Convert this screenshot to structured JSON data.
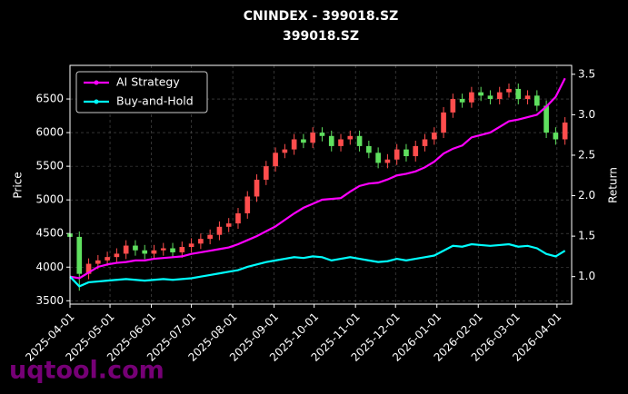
{
  "chart_data": {
    "type": "candlestick",
    "title": "CNINDEX - 399018.SZ",
    "subtitle": "399018.SZ",
    "ylabel": "Price",
    "y2label": "Return",
    "watermark": "uqtool.com",
    "up_color": "#ff4d4d",
    "down_color": "#5fe05f",
    "grid": true,
    "legend": "upper-left",
    "x": [
      "2025-04-01",
      "2025-04-08",
      "2025-04-15",
      "2025-04-22",
      "2025-04-29",
      "2025-05-06",
      "2025-05-13",
      "2025-05-20",
      "2025-05-27",
      "2025-06-03",
      "2025-06-10",
      "2025-06-17",
      "2025-06-24",
      "2025-07-01",
      "2025-07-08",
      "2025-07-15",
      "2025-07-22",
      "2025-07-29",
      "2025-08-05",
      "2025-08-12",
      "2025-08-19",
      "2025-08-26",
      "2025-09-02",
      "2025-09-09",
      "2025-09-16",
      "2025-09-23",
      "2025-09-30",
      "2025-10-07",
      "2025-10-14",
      "2025-10-21",
      "2025-10-28",
      "2025-11-04",
      "2025-11-11",
      "2025-11-18",
      "2025-11-25",
      "2025-12-02",
      "2025-12-09",
      "2025-12-16",
      "2025-12-23",
      "2025-12-30",
      "2026-01-06",
      "2026-01-13",
      "2026-01-20",
      "2026-01-27",
      "2026-02-03",
      "2026-02-10",
      "2026-02-17",
      "2026-02-24",
      "2026-03-03",
      "2026-03-10",
      "2026-03-17",
      "2026-03-24",
      "2026-03-31",
      "2026-04-07"
    ],
    "open": [
      4500,
      4450,
      3900,
      4050,
      4100,
      4150,
      4200,
      4320,
      4250,
      4200,
      4250,
      4280,
      4220,
      4300,
      4350,
      4420,
      4480,
      4600,
      4650,
      4800,
      5050,
      5300,
      5500,
      5700,
      5750,
      5900,
      5850,
      6000,
      5950,
      5800,
      5900,
      5950,
      5800,
      5700,
      5550,
      5600,
      5750,
      5650,
      5800,
      5900,
      6000,
      6300,
      6500,
      6450,
      6600,
      6550,
      6500,
      6600,
      6650,
      6500,
      6550,
      6400,
      6000,
      5900
    ],
    "high": [
      4580,
      4530,
      4130,
      4180,
      4230,
      4280,
      4400,
      4400,
      4330,
      4330,
      4360,
      4360,
      4380,
      4430,
      4500,
      4560,
      4680,
      4730,
      4880,
      5130,
      5380,
      5580,
      5780,
      5830,
      5980,
      5980,
      6080,
      6080,
      6030,
      5980,
      6030,
      6030,
      5880,
      5780,
      5680,
      5830,
      5830,
      5880,
      5980,
      6080,
      6380,
      6580,
      6580,
      6680,
      6680,
      6630,
      6680,
      6730,
      6730,
      6630,
      6630,
      6480,
      6080,
      6230
    ],
    "low": [
      4370,
      3650,
      3820,
      3970,
      4020,
      4070,
      4120,
      4170,
      4120,
      4120,
      4170,
      4140,
      4140,
      4220,
      4270,
      4340,
      4400,
      4520,
      4570,
      4720,
      4970,
      5220,
      5420,
      5620,
      5670,
      5770,
      5770,
      5870,
      5720,
      5720,
      5820,
      5720,
      5620,
      5470,
      5470,
      5520,
      5570,
      5570,
      5720,
      5820,
      5920,
      6220,
      6370,
      6370,
      6470,
      6420,
      6420,
      6520,
      6420,
      6420,
      6320,
      5920,
      5820,
      5820
    ],
    "close": [
      4450,
      3900,
      4050,
      4100,
      4150,
      4200,
      4320,
      4250,
      4200,
      4250,
      4280,
      4220,
      4300,
      4350,
      4420,
      4480,
      4600,
      4650,
      4800,
      5050,
      5300,
      5500,
      5700,
      5750,
      5900,
      5850,
      6000,
      5950,
      5800,
      5900,
      5950,
      5800,
      5700,
      5550,
      5600,
      5750,
      5650,
      5800,
      5900,
      6000,
      6300,
      6500,
      6450,
      6600,
      6550,
      6500,
      6600,
      6650,
      6500,
      6550,
      6400,
      6000,
      5900,
      6150
    ],
    "series": [
      {
        "name": "AI Strategy",
        "color": "#ff00ff",
        "type": "line",
        "axis": "y2",
        "values": [
          1.0,
          0.98,
          1.05,
          1.12,
          1.15,
          1.17,
          1.18,
          1.2,
          1.2,
          1.22,
          1.23,
          1.24,
          1.25,
          1.28,
          1.3,
          1.32,
          1.34,
          1.36,
          1.4,
          1.45,
          1.5,
          1.56,
          1.62,
          1.7,
          1.78,
          1.85,
          1.9,
          1.95,
          1.96,
          1.97,
          2.05,
          2.12,
          2.15,
          2.16,
          2.2,
          2.25,
          2.27,
          2.3,
          2.35,
          2.42,
          2.52,
          2.58,
          2.62,
          2.72,
          2.75,
          2.78,
          2.85,
          2.92,
          2.94,
          2.97,
          3.0,
          3.1,
          3.22,
          3.45
        ]
      },
      {
        "name": "Buy-and-Hold",
        "color": "#00ffff",
        "type": "line",
        "axis": "y2",
        "values": [
          1.0,
          0.88,
          0.93,
          0.94,
          0.95,
          0.96,
          0.97,
          0.96,
          0.95,
          0.96,
          0.97,
          0.96,
          0.97,
          0.98,
          1.0,
          1.02,
          1.04,
          1.06,
          1.08,
          1.12,
          1.15,
          1.18,
          1.2,
          1.22,
          1.24,
          1.23,
          1.25,
          1.24,
          1.2,
          1.22,
          1.24,
          1.22,
          1.2,
          1.18,
          1.19,
          1.22,
          1.2,
          1.22,
          1.24,
          1.26,
          1.32,
          1.38,
          1.37,
          1.4,
          1.39,
          1.38,
          1.39,
          1.4,
          1.37,
          1.38,
          1.35,
          1.28,
          1.25,
          1.32
        ]
      }
    ],
    "xlim": [
      "2025-04-01",
      "2026-04-12"
    ],
    "xticks": [
      "2025-04-01",
      "2025-05-01",
      "2025-06-01",
      "2025-07-01",
      "2025-08-01",
      "2025-09-01",
      "2025-10-01",
      "2025-11-01",
      "2025-12-01",
      "2026-01-01",
      "2026-02-01",
      "2026-03-01",
      "2026-04-01"
    ],
    "ylim": [
      3450,
      7000
    ],
    "yticks": [
      3500,
      4000,
      4500,
      5000,
      5500,
      6000,
      6500
    ],
    "y2lim": [
      0.66,
      3.61
    ],
    "y2ticks": [
      {
        "value": 1,
        "label": "1.0"
      },
      1.5,
      {
        "value": 2,
        "label": "2.0"
      },
      2.5,
      {
        "value": 3,
        "label": "3.0"
      },
      3.5
    ]
  }
}
